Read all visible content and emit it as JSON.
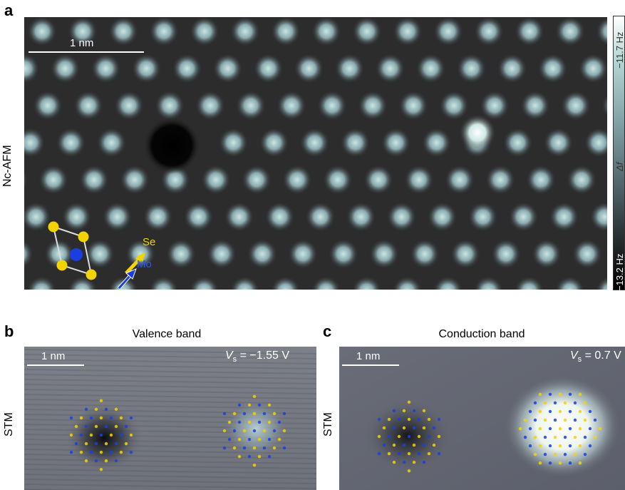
{
  "panel_a": {
    "letter": "a",
    "side_label": "Nc-AFM",
    "scale_label": "1 nm",
    "colorbar": {
      "top": "−11.7 Hz",
      "bottom": "−13.2 Hz",
      "symbol": "Δf"
    },
    "atoms": {
      "se": "Se",
      "mo": "Mo",
      "se_color": "#f2d400",
      "mo_color": "#1a3fe0"
    }
  },
  "panel_b": {
    "letter": "b",
    "side_label": "STM",
    "title": "Valence band",
    "scale_label": "1 nm",
    "bias_var": "V",
    "bias_sub": "s",
    "bias_value": " = −1.55 V"
  },
  "panel_c": {
    "letter": "c",
    "side_label": "STM",
    "title": "Conduction band",
    "scale_label": "1 nm",
    "bias_var": "V",
    "bias_sub": "s",
    "bias_value": " = 0.7 V"
  }
}
